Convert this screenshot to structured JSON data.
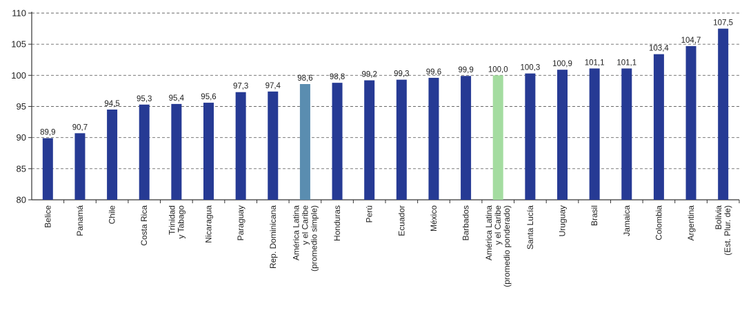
{
  "chart_data": {
    "type": "bar",
    "categories": [
      [
        "Belice"
      ],
      [
        "Panamá"
      ],
      [
        "Chile"
      ],
      [
        "Costa Rica"
      ],
      [
        "Trinidad",
        "y Tabago"
      ],
      [
        "Nicaragua"
      ],
      [
        "Paraguay"
      ],
      [
        "Rep. Dominicana"
      ],
      [
        "América Latina",
        "y el Caribe",
        "(promedio simple)"
      ],
      [
        "Honduras"
      ],
      [
        "Perú"
      ],
      [
        "Ecuador"
      ],
      [
        "México"
      ],
      [
        "Barbados"
      ],
      [
        "América Latina",
        "y el Caribe",
        "(promedio ponderado)"
      ],
      [
        "Santa Lucía"
      ],
      [
        "Uruguay"
      ],
      [
        "Brasil"
      ],
      [
        "Jamaica"
      ],
      [
        "Colombia"
      ],
      [
        "Argentina"
      ],
      [
        "Bolivia",
        "(Est. Plur. de)"
      ]
    ],
    "values": [
      89.9,
      90.7,
      94.5,
      95.3,
      95.4,
      95.6,
      97.3,
      97.4,
      98.6,
      98.8,
      99.2,
      99.3,
      99.6,
      99.9,
      100.0,
      100.3,
      100.9,
      101.1,
      101.1,
      103.4,
      104.7,
      107.5
    ],
    "value_labels": [
      "89,9",
      "90,7",
      "94,5",
      "95,3",
      "95,4",
      "95,6",
      "97,3",
      "97,4",
      "98,6",
      "98,8",
      "99,2",
      "99,3",
      "99,6",
      "99,9",
      "100,0",
      "100,3",
      "100,9",
      "101,1",
      "101,1",
      "103,4",
      "104,7",
      "107,5"
    ],
    "bar_colors": [
      "#263a94",
      "#263a94",
      "#263a94",
      "#263a94",
      "#263a94",
      "#263a94",
      "#263a94",
      "#263a94",
      "#5a8db0",
      "#263a94",
      "#263a94",
      "#263a94",
      "#263a94",
      "#263a94",
      "#a4dca0",
      "#263a94",
      "#263a94",
      "#263a94",
      "#263a94",
      "#263a94",
      "#263a94",
      "#263a94"
    ],
    "y_ticks": [
      "80",
      "85",
      "90",
      "95",
      "100",
      "105",
      "110"
    ],
    "y_tick_values": [
      80,
      85,
      90,
      95,
      100,
      105,
      110
    ],
    "ylim": [
      80,
      110
    ],
    "grid": "horizontal dashed",
    "title": "",
    "xlabel": "",
    "ylabel": ""
  }
}
